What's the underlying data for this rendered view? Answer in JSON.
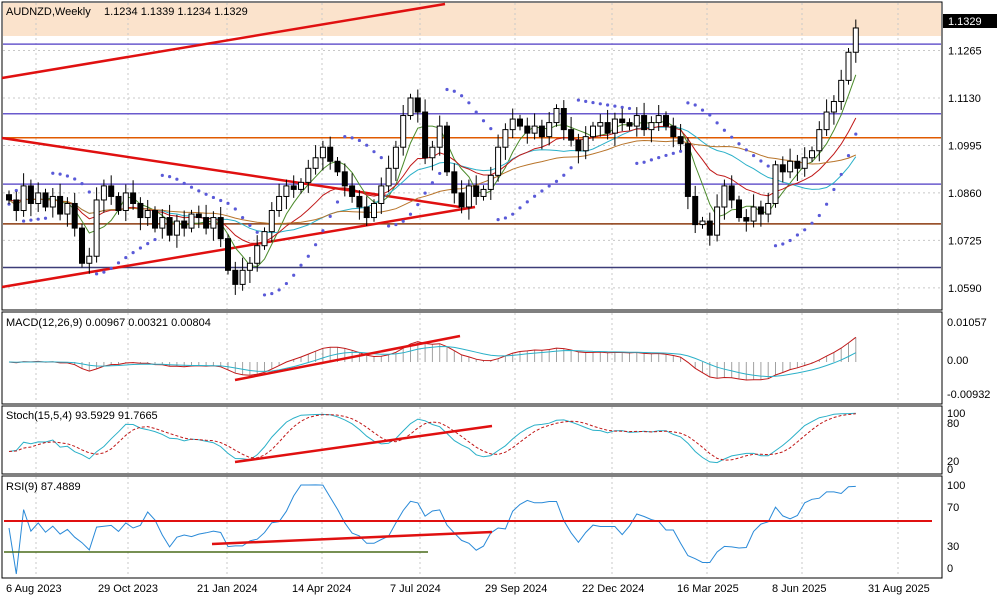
{
  "chart_data": {
    "type": "candlestick",
    "symbol_timeframe": "AUDNZD,Weekly",
    "ohlc_readout": "1.1234 1.1339 1.1234 1.1329",
    "last_price_label": "1.1329",
    "price_ticks": [
      "1.1265",
      "1.1130",
      "1.0995",
      "1.0860",
      "1.0725",
      "1.0590"
    ],
    "price_range": [
      1.053,
      1.14
    ],
    "x_tick_labels": [
      "6 Aug 2023",
      "29 Oct 2023",
      "21 Jan 2024",
      "14 Apr 2024",
      "7 Jul 2024",
      "29 Sep 2024",
      "22 Dec 2024",
      "16 Mar 2025",
      "8 Jun 2025",
      "31 Aug 2025"
    ],
    "horizontal_levels": [
      {
        "price": 1.1283,
        "color": "#6a5acd"
      },
      {
        "price": 1.1085,
        "color": "#6a5acd"
      },
      {
        "price": 1.1017,
        "color": "#e05a00"
      },
      {
        "price": 1.0885,
        "color": "#6a5acd"
      },
      {
        "price": 1.0772,
        "color": "#8b3a0f"
      },
      {
        "price": 1.0648,
        "color": "#3c3c78"
      }
    ],
    "closes": [
      1.084,
      1.081,
      1.088,
      1.083,
      1.086,
      1.082,
      1.085,
      1.08,
      1.083,
      1.076,
      1.066,
      1.068,
      1.084,
      1.088,
      1.085,
      1.081,
      1.086,
      1.083,
      1.079,
      1.081,
      1.076,
      1.079,
      1.074,
      1.078,
      1.076,
      1.08,
      1.079,
      1.076,
      1.079,
      1.073,
      1.064,
      1.06,
      1.064,
      1.066,
      1.071,
      1.075,
      1.081,
      1.085,
      1.088,
      1.087,
      1.089,
      1.093,
      1.096,
      1.099,
      1.095,
      1.092,
      1.088,
      1.085,
      1.082,
      1.079,
      1.083,
      1.088,
      1.093,
      1.099,
      1.108,
      1.113,
      1.109,
      1.096,
      1.099,
      1.105,
      1.092,
      1.086,
      1.082,
      1.088,
      1.085,
      1.087,
      1.091,
      1.099,
      1.104,
      1.107,
      1.105,
      1.103,
      1.105,
      1.102,
      1.106,
      1.11,
      1.104,
      1.101,
      1.098,
      1.102,
      1.105,
      1.106,
      1.103,
      1.107,
      1.106,
      1.105,
      1.108,
      1.104,
      1.106,
      1.108,
      1.105,
      1.102,
      1.1,
      1.085,
      1.077,
      1.078,
      1.074,
      1.082,
      1.088,
      1.084,
      1.079,
      1.078,
      1.082,
      1.08,
      1.083,
      1.094,
      1.092,
      1.095,
      1.093,
      1.096,
      1.098,
      1.104,
      1.109,
      1.112,
      1.118,
      1.126,
      1.1329
    ],
    "indicators": [
      {
        "title": "MACD(12,26,9) 0.00967 0.00321 0.00804",
        "ticks": [
          "0.01057",
          "0.00",
          "-0.00932"
        ]
      },
      {
        "title": "Stoch(15,5,4) 93.5929 91.7665",
        "ticks": [
          "100",
          "80",
          "20",
          "0"
        ]
      },
      {
        "title": "RSI(9) 87.4889",
        "ticks": [
          "100",
          "70",
          "30",
          "0"
        ]
      }
    ]
  }
}
